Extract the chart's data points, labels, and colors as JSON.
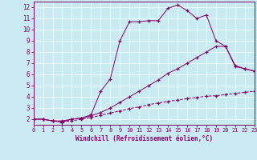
{
  "xlabel": "Windchill (Refroidissement éolien,°C)",
  "background_color": "#c8eaf0",
  "line_color": "#880066",
  "xlim": [
    0,
    23
  ],
  "ylim": [
    1.5,
    12.5
  ],
  "xticks": [
    0,
    1,
    2,
    3,
    4,
    5,
    6,
    7,
    8,
    9,
    10,
    11,
    12,
    13,
    14,
    15,
    16,
    17,
    18,
    19,
    20,
    21,
    22,
    23
  ],
  "yticks": [
    2,
    3,
    4,
    5,
    6,
    7,
    8,
    9,
    10,
    11,
    12
  ],
  "line1_x": [
    0,
    1,
    2,
    3,
    4,
    5,
    6,
    7,
    8,
    9,
    10,
    11,
    12,
    13,
    14,
    15,
    16,
    17,
    18,
    19,
    20,
    21,
    22,
    23
  ],
  "line1_y": [
    2.0,
    2.0,
    1.85,
    1.75,
    1.85,
    2.0,
    2.15,
    2.35,
    2.55,
    2.75,
    2.95,
    3.1,
    3.3,
    3.45,
    3.6,
    3.7,
    3.85,
    3.95,
    4.05,
    4.1,
    4.2,
    4.3,
    4.4,
    4.5
  ],
  "line2_x": [
    0,
    1,
    2,
    3,
    4,
    5,
    6,
    7,
    8,
    9,
    10,
    11,
    12,
    13,
    14,
    15,
    16,
    17,
    18,
    19,
    20,
    21,
    22,
    23
  ],
  "line2_y": [
    2.0,
    2.0,
    1.85,
    1.85,
    2.0,
    2.1,
    2.3,
    2.6,
    3.0,
    3.5,
    4.0,
    4.5,
    5.0,
    5.5,
    6.1,
    6.5,
    7.0,
    7.5,
    8.0,
    8.5,
    8.5,
    6.7,
    6.5,
    6.3
  ],
  "line3_x": [
    0,
    1,
    2,
    3,
    4,
    5,
    6,
    7,
    8,
    9,
    10,
    11,
    12,
    13,
    14,
    15,
    16,
    17,
    18,
    19,
    20,
    21,
    22,
    23
  ],
  "line3_y": [
    2.0,
    2.0,
    1.85,
    1.75,
    2.0,
    2.1,
    2.4,
    4.5,
    5.6,
    9.0,
    10.7,
    10.7,
    10.8,
    10.8,
    11.9,
    12.2,
    11.7,
    11.0,
    11.3,
    9.0,
    8.5,
    6.8,
    6.5,
    6.3
  ],
  "line1_style": "--",
  "line2_style": "-",
  "line3_style": "-"
}
